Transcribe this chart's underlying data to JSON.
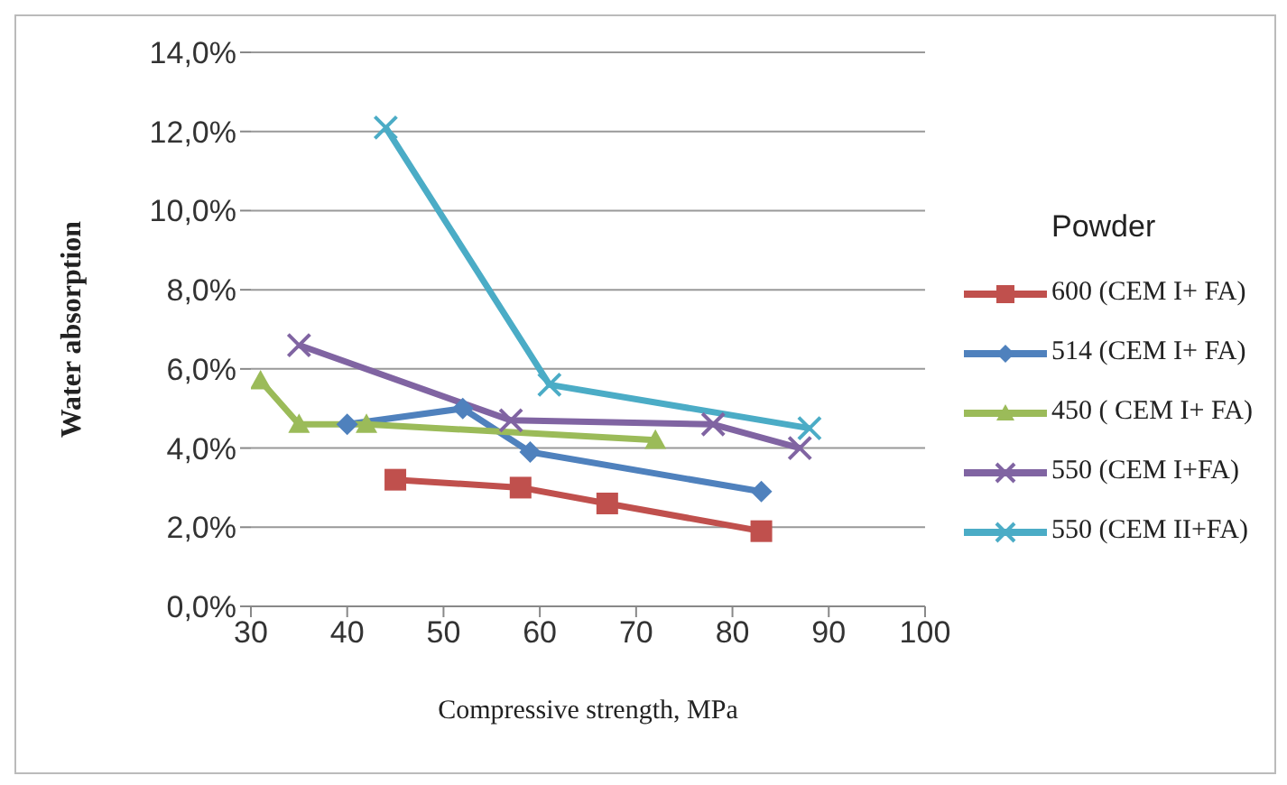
{
  "chart_data": {
    "type": "line",
    "xlabel": "Compressive strength, MPa",
    "ylabel": "Water absorption",
    "legend_title": "Powder",
    "legend": "right",
    "grid": "y",
    "xlim": [
      30,
      100
    ],
    "xticks": [
      30,
      40,
      50,
      60,
      70,
      80,
      90,
      100
    ],
    "ylim": [
      0,
      14
    ],
    "yticks": [
      {
        "value": 0,
        "label": "0,0%"
      },
      {
        "value": 2,
        "label": "2,0%"
      },
      {
        "value": 4,
        "label": "4,0%"
      },
      {
        "value": 6,
        "label": "6,0%"
      },
      {
        "value": 8,
        "label": "8,0%"
      },
      {
        "value": 10,
        "label": "10,0%"
      },
      {
        "value": 12,
        "label": "12,0%"
      },
      {
        "value": 14,
        "label": "14,0%"
      }
    ],
    "series": [
      {
        "name": "600 (CEM I+ FA)",
        "color": "#c0504d",
        "marker": "square",
        "x": [
          45,
          58,
          67,
          83
        ],
        "values": [
          3.2,
          3.0,
          2.6,
          1.9
        ]
      },
      {
        "name": "514 (CEM I+ FA)",
        "color": "#4f81bd",
        "marker": "diamond",
        "x": [
          40,
          52,
          59,
          83
        ],
        "values": [
          4.6,
          5.0,
          3.9,
          2.9
        ]
      },
      {
        "name": "450 ( CEM I+ FA)",
        "color": "#9bbb59",
        "marker": "triangle",
        "x": [
          31,
          35,
          42,
          72
        ],
        "values": [
          5.7,
          4.6,
          4.6,
          4.2
        ]
      },
      {
        "name": "550 (CEM I+FA)",
        "color": "#8064a2",
        "marker": "cross",
        "x": [
          35,
          57,
          78,
          87
        ],
        "values": [
          6.6,
          4.7,
          4.6,
          4.0
        ]
      },
      {
        "name": "550 (CEM II+FA)",
        "color": "#4bacc6",
        "marker": "cross",
        "x": [
          44,
          61,
          88
        ],
        "values": [
          12.1,
          5.6,
          4.5
        ]
      }
    ]
  }
}
